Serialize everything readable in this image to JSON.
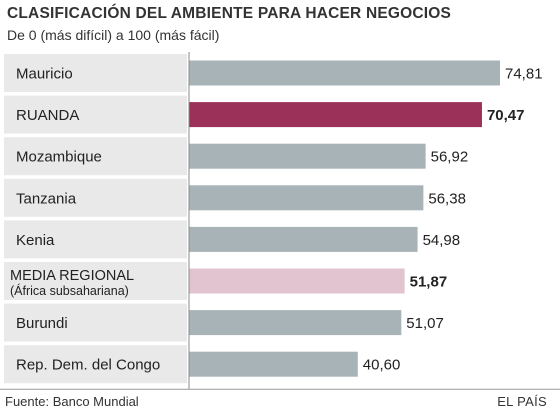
{
  "title": "CLASIFICACIÓN DEL AMBIENTE PARA HACER NEGOCIOS",
  "subtitle": "De 0 (más difícil) a 100 (más fácil)",
  "source": "Fuente: Banco Mundial",
  "publisher": "EL PAÍS",
  "colors": {
    "default": "#a8b3b8",
    "highlight": "#9b3158",
    "regional": "#e2c3d0",
    "band": "#e9e9e9"
  },
  "chart_data": {
    "type": "bar",
    "orientation": "horizontal",
    "xlim": [
      0,
      75
    ],
    "categories": [
      "Mauricio",
      "RUANDA",
      "Mozambique",
      "Tanzania",
      "Kenia",
      "MEDIA REGIONAL",
      "Burundi",
      "Rep. Dem. del Congo"
    ],
    "category_sublabels": [
      "",
      "",
      "",
      "",
      "",
      "(África subsahariana)",
      "",
      ""
    ],
    "values": [
      74.81,
      70.47,
      56.92,
      56.38,
      54.98,
      51.87,
      51.07,
      40.6
    ],
    "value_labels": [
      "74,81",
      "70,47",
      "56,92",
      "56,38",
      "54,98",
      "51,87",
      "51,07",
      "40,60"
    ],
    "styles": [
      "default",
      "highlight",
      "default",
      "default",
      "default",
      "regional",
      "default",
      "default"
    ],
    "bold_labels": [
      false,
      true,
      false,
      false,
      false,
      true,
      false,
      false
    ]
  }
}
